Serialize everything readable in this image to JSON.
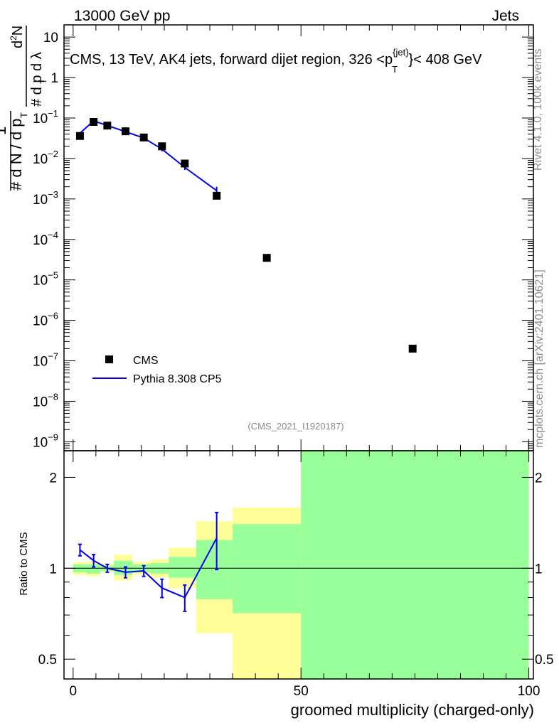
{
  "header": {
    "left": "13000 GeV pp",
    "right": "Jets"
  },
  "side_labels": {
    "rivet": "Rivet 4.1.0,  100k events",
    "mcplots": "mcplots.cern.ch [arXiv:2401.10621]"
  },
  "chart_data": [
    {
      "type": "scatter",
      "title": "CMS, 13 TeV, AK4 jets, forward dijet region, 326 <p_T^{jet}< 408 GeV",
      "title_parts": {
        "main": "CMS, 13 TeV, AK4 jets, forward dijet region, 326 <p",
        "sup": "{jet}",
        "sub": "T",
        "tail": "}< 408 GeV"
      },
      "ylabel": "1/dN/dp_T  d²N/dp_T dλ",
      "ylabel_parts": {
        "one": "1",
        "den": "# d N / d p",
        "num": "# d²N",
        "den2": "# d p  d λ",
        "T": "T",
        "two": "2"
      },
      "yscale": "log",
      "xlim": [
        -2,
        101
      ],
      "ylim": [
        6e-10,
        20
      ],
      "yticks": [
        {
          "v": 10,
          "label": "10"
        },
        {
          "v": 1,
          "label": "1"
        },
        {
          "v": 0.1,
          "base": "10",
          "exp": "−1"
        },
        {
          "v": 0.01,
          "base": "10",
          "exp": "−2"
        },
        {
          "v": 0.001,
          "base": "10",
          "exp": "−3"
        },
        {
          "v": 0.0001,
          "base": "10",
          "exp": "−4"
        },
        {
          "v": 1e-05,
          "base": "10",
          "exp": "−5"
        },
        {
          "v": 1e-06,
          "base": "10",
          "exp": "−6"
        },
        {
          "v": 1e-07,
          "base": "10",
          "exp": "−7"
        },
        {
          "v": 1e-08,
          "base": "10",
          "exp": "−8"
        },
        {
          "v": 1e-09,
          "base": "10",
          "exp": "−9"
        }
      ],
      "series": [
        {
          "name": "CMS",
          "style": "markers",
          "color": "#000000",
          "x": [
            1.5,
            4.5,
            7.5,
            11.5,
            15.5,
            19.5,
            24.5,
            31.5,
            42.5,
            74.5
          ],
          "y": [
            0.036,
            0.08,
            0.065,
            0.047,
            0.033,
            0.02,
            0.0075,
            0.0012,
            3.5e-05,
            2e-07
          ]
        },
        {
          "name": "Pythia 8.308 CP5",
          "style": "line",
          "color": "#0000ee",
          "x": [
            1.5,
            4.5,
            7.5,
            11.5,
            15.5,
            19.5,
            24.5,
            31.5
          ],
          "y": [
            0.042,
            0.085,
            0.065,
            0.046,
            0.032,
            0.017,
            0.006,
            0.0016
          ],
          "yerr": [
            0.002,
            0.003,
            0.002,
            0.002,
            0.002,
            0.002,
            0.0008,
            0.0004
          ]
        }
      ],
      "legend": [
        {
          "label": "CMS",
          "kind": "marker"
        },
        {
          "label": "Pythia 8.308 CP5",
          "kind": "line"
        }
      ],
      "legend_position": "bottom-left",
      "annotation": "(CMS_2021_I1920187)"
    },
    {
      "type": "line",
      "ylabel": "Ratio to CMS",
      "xlabel": "groomed multiplicity (charged-only)",
      "xlim": [
        -2,
        101
      ],
      "ylim": [
        0.43,
        2.45
      ],
      "yscale": "log",
      "yticks": [
        {
          "v": 0.5,
          "label": "0.5"
        },
        {
          "v": 1,
          "label": "1"
        },
        {
          "v": 2,
          "label": "2"
        }
      ],
      "xticks": [
        {
          "v": 0,
          "label": "0"
        },
        {
          "v": 50,
          "label": "50"
        },
        {
          "v": 100,
          "label": "100"
        }
      ],
      "reference": 1,
      "bins": [
        {
          "lo": 0,
          "hi": 3,
          "y_lo": 0.95,
          "y_hi": 1.05,
          "g_lo": 0.97,
          "g_hi": 1.03
        },
        {
          "lo": 3,
          "hi": 6,
          "y_lo": 0.94,
          "y_hi": 1.05,
          "g_lo": 0.96,
          "g_hi": 1.03
        },
        {
          "lo": 6,
          "hi": 9,
          "y_lo": 0.97,
          "y_hi": 1.03,
          "g_lo": 0.98,
          "g_hi": 1.02
        },
        {
          "lo": 9,
          "hi": 13,
          "y_lo": 0.91,
          "y_hi": 1.11,
          "g_lo": 0.95,
          "g_hi": 1.06
        },
        {
          "lo": 13,
          "hi": 17,
          "y_lo": 0.95,
          "y_hi": 1.05,
          "g_lo": 0.97,
          "g_hi": 1.03
        },
        {
          "lo": 17,
          "hi": 21,
          "y_lo": 0.93,
          "y_hi": 1.07,
          "g_lo": 0.96,
          "g_hi": 1.04
        },
        {
          "lo": 21,
          "hi": 27,
          "y_lo": 0.86,
          "y_hi": 1.17,
          "g_lo": 0.93,
          "g_hi": 1.09
        },
        {
          "lo": 27,
          "hi": 35,
          "y_lo": 0.61,
          "y_hi": 1.43,
          "g_lo": 0.79,
          "g_hi": 1.24
        },
        {
          "lo": 35,
          "hi": 50,
          "y_lo": 0.43,
          "y_hi": 1.59,
          "g_lo": 0.71,
          "g_hi": 1.4
        },
        {
          "lo": 50,
          "hi": 100,
          "y_lo": 0.43,
          "y_hi": 2.45,
          "g_lo": 0.43,
          "g_hi": 2.45
        }
      ],
      "series": [
        {
          "name": "Pythia 8.308 CP5",
          "color": "#0000ee",
          "x": [
            1.5,
            4.5,
            7.5,
            11.5,
            15.5,
            19.5,
            24.5,
            31.5
          ],
          "y": [
            1.15,
            1.06,
            1.0,
            0.97,
            0.98,
            0.86,
            0.8,
            1.26
          ],
          "yerr": [
            0.05,
            0.05,
            0.03,
            0.04,
            0.04,
            0.06,
            0.08,
            0.27
          ]
        }
      ]
    }
  ]
}
